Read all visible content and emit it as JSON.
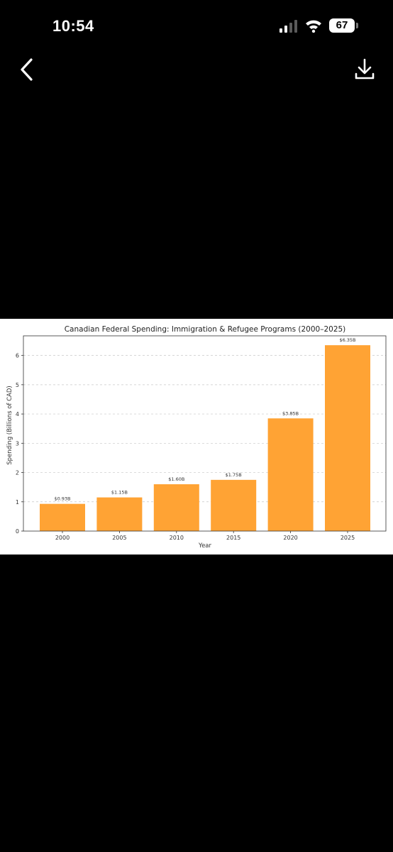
{
  "status_bar": {
    "time": "10:54",
    "battery_level": "67",
    "icons": [
      "signal-icon",
      "wifi-icon",
      "battery-icon"
    ]
  },
  "toolbar": {
    "back_icon": "chevron-left-icon",
    "download_icon": "download-icon"
  },
  "chart_data": {
    "type": "bar",
    "title": "Canadian Federal Spending: Immigration & Refugee Programs (2000–2025)",
    "xlabel": "Year",
    "ylabel": "Spending (Billions of CAD)",
    "categories": [
      "2000",
      "2005",
      "2010",
      "2015",
      "2020",
      "2025"
    ],
    "values": [
      0.93,
      1.15,
      1.6,
      1.75,
      3.85,
      6.35
    ],
    "data_labels": [
      "$0.93B",
      "$1.15B",
      "$1.60B",
      "$1.75B",
      "$3.85B",
      "$6.35B"
    ],
    "yticks": [
      0,
      1,
      2,
      3,
      4,
      5,
      6
    ],
    "ylim": [
      0,
      6.67
    ],
    "bar_color": "#ffa334",
    "grid": "horizontal dashed",
    "legend": "none"
  }
}
